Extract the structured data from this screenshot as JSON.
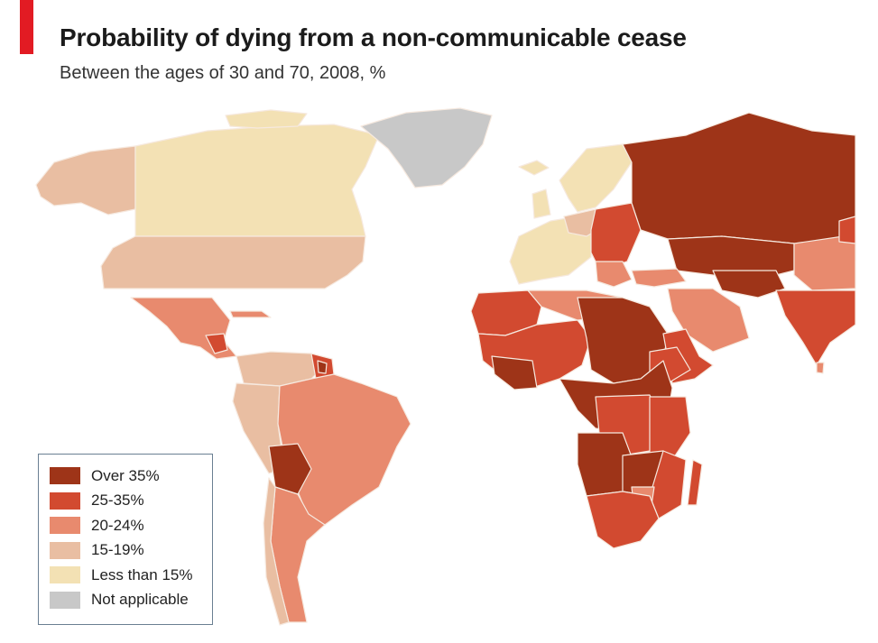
{
  "header": {
    "title": "Probability of dying from a non-communicable cease",
    "subtitle": "Between the ages of 30 and 70, 2008, %"
  },
  "colors": {
    "accent": "#e21b23",
    "ocean": "#ffffff",
    "border": "#f6e9df",
    "over35": "#9e3418",
    "r25_35": "#d24a30",
    "r20_24": "#e88a6e",
    "r15_19": "#e9bea2",
    "lt15": "#f3e1b4",
    "na": "#c8c8c8"
  },
  "legend": {
    "items": [
      {
        "label": "Over 35%",
        "color": "#9e3418"
      },
      {
        "label": "25-35%",
        "color": "#d24a30"
      },
      {
        "label": "20-24%",
        "color": "#e88a6e"
      },
      {
        "label": "15-19%",
        "color": "#e9bea2"
      },
      {
        "label": "Less than 15%",
        "color": "#f3e1b4"
      },
      {
        "label": "Not applicable",
        "color": "#c8c8c8"
      }
    ]
  }
}
